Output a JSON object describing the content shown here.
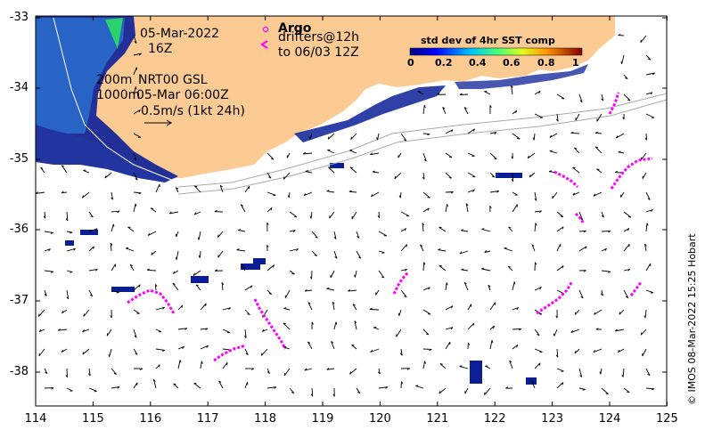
{
  "map": {
    "datetime_line1": "05-Mar-2022",
    "datetime_line2": "16Z",
    "legend_argo": "Argo",
    "legend_drifters": "drifters@12h",
    "legend_drifters_to": "to 06/03 12Z",
    "isobath_200": "200m",
    "isobath_1000": "1000m",
    "current_product": "NRT00 GSL",
    "current_time": "05-Mar 06:00Z",
    "scale_label": "0.5m/s (1kt 24h)",
    "credit": "© IMOS 08-Mar-2022 15:25 Hobart"
  },
  "colorbar": {
    "title": "std dev of 4hr SST comp",
    "ticks": [
      "0",
      "0.2",
      "0.4",
      "0.6",
      "0.8",
      "1"
    ]
  },
  "axes": {
    "y_ticks": [
      "-33",
      "-34",
      "-35",
      "-36",
      "-37",
      "-38"
    ],
    "x_ticks": [
      "114",
      "115",
      "116",
      "117",
      "118",
      "119",
      "120",
      "121",
      "122",
      "123",
      "124",
      "125"
    ]
  },
  "colors": {
    "land": "#fccb94",
    "ocean": "#ffffff",
    "argo": "#ff00ff",
    "sst_low": "#0a1e96",
    "isobath": "#aaaaaa"
  }
}
